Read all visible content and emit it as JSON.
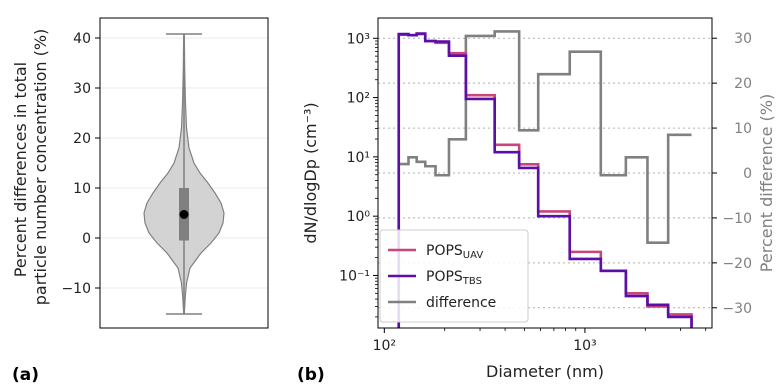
{
  "panel_labels": {
    "a": "(a)",
    "b": "(b)"
  },
  "colors": {
    "uav": "#c7477a",
    "tbs": "#5a0fa8",
    "difference": "#808080",
    "violin_fill": "#d3d3d3"
  },
  "chart_data": [
    {
      "type": "violin",
      "ylabel_line1": "Percent differences in total",
      "ylabel_line2": "particle number concentration (%)",
      "ylim": [
        -18,
        44
      ],
      "yticks": [
        -10,
        0,
        10,
        20,
        30,
        40
      ],
      "ytick_labels": [
        "−10",
        "0",
        "10",
        "20",
        "30",
        "40"
      ],
      "min": -15.2,
      "max": 40.8,
      "q1": -0.5,
      "q3": 10.0,
      "median": 4.7,
      "grid": true
    },
    {
      "type": "line",
      "step": true,
      "xscale": "log",
      "yscale": "log",
      "xlabel": "Diameter (nm)",
      "ylabel": "dN/dlogDp (cm⁻³)",
      "y2label": "Percent difference (%)",
      "xlim": [
        93,
        4300
      ],
      "ylim": [
        0.013,
        2200
      ],
      "y2lim": [
        -34.5,
        34.5
      ],
      "xticks": [
        100,
        1000
      ],
      "xtick_labels": [
        "10²",
        "10³"
      ],
      "yticks": [
        0.1,
        1,
        10,
        100,
        1000
      ],
      "ytick_labels": [
        "10⁻¹",
        "10⁰",
        "10¹",
        "10²",
        "10³"
      ],
      "y2ticks": [
        -30,
        -20,
        -10,
        0,
        10,
        20,
        30
      ],
      "y2tick_labels": [
        "−30",
        "−20",
        "−10",
        "0",
        "10",
        "20",
        "30"
      ],
      "bin_edges": [
        118,
        132,
        145,
        160,
        180,
        210,
        255,
        355,
        470,
        585,
        840,
        1200,
        1600,
        2050,
        2600,
        3400
      ],
      "series": [
        {
          "name": "POPS",
          "name_sub": "UAV",
          "axis": "left",
          "values": [
            1150,
            1130,
            1180,
            900,
            840,
            560,
            110,
            16,
            7.5,
            1.2,
            0.25,
            0.12,
            0.05,
            0.03,
            0.022
          ]
        },
        {
          "name": "POPS",
          "name_sub": "TBS",
          "axis": "left",
          "values": [
            1180,
            1130,
            1200,
            900,
            880,
            510,
            95,
            12,
            6.5,
            1.0,
            0.19,
            0.12,
            0.045,
            0.032,
            0.02
          ]
        },
        {
          "name": "difference",
          "axis": "right",
          "values": [
            2,
            3.5,
            2.5,
            1.5,
            -0.5,
            7.5,
            30.5,
            31.5,
            9.5,
            22,
            27,
            -0.5,
            3.5,
            -15.5,
            8.5
          ]
        }
      ],
      "legend": {
        "position": "lower-left"
      },
      "grid_right": true
    }
  ]
}
